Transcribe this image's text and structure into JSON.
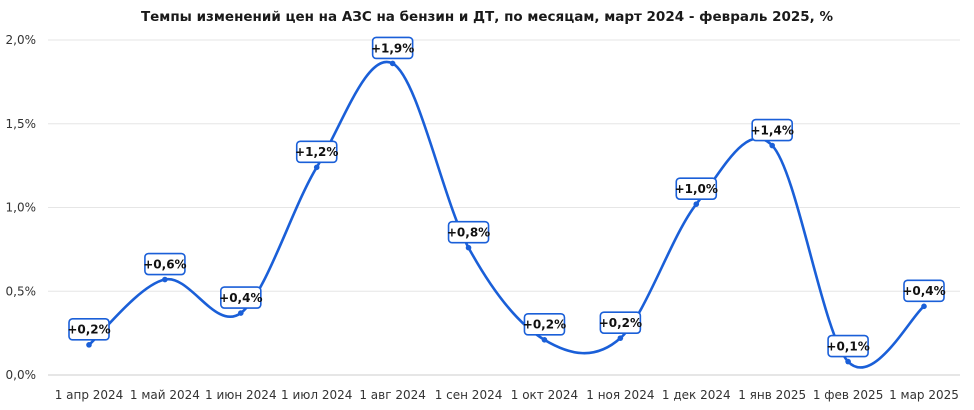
{
  "chart_data": {
    "type": "line",
    "title": "Темпы изменений цен на АЗС на бензин и ДТ, по месяцам, март 2024 - февраль 2025, %",
    "xlabel": "",
    "ylabel": "",
    "categories": [
      "1 апр 2024",
      "1 май 2024",
      "1 июн 2024",
      "1 июл 2024",
      "1 авг 2024",
      "1 сен 2024",
      "1 окт 2024",
      "1 ноя 2024",
      "1 дек 2024",
      "1 янв 2025",
      "1 фев 2025",
      "1 мар 2025"
    ],
    "x": [
      "1 апр 2024",
      "1 май 2024",
      "1 июн 2024",
      "1 июл 2024",
      "1 авг 2024",
      "1 сен 2024",
      "1 окт 2024",
      "1 ноя 2024",
      "1 дек 2024",
      "1 янв 2025",
      "1 фев 2025",
      "1 мар 2025"
    ],
    "series": [
      {
        "values": [
          0.18,
          0.57,
          0.37,
          1.24,
          1.86,
          0.76,
          0.21,
          0.22,
          1.02,
          1.37,
          0.08,
          0.41
        ],
        "data_labels": [
          "+0,2%",
          "+0,6%",
          "+0,4%",
          "+1,2%",
          "+1,9%",
          "+0,8%",
          "+0,2%",
          "+0,2%",
          "+1,0%",
          "+1,4%",
          "+0,1%",
          "+0,4%"
        ],
        "color": "#1a5fd8"
      }
    ],
    "ylim": [
      0,
      2.0
    ],
    "yticks": [
      0,
      0.5,
      1.0,
      1.5,
      2.0
    ],
    "ytick_labels": [
      "0,0%",
      "0,5%",
      "1,0%",
      "1,5%",
      "2,0%"
    ],
    "grid": true,
    "legend": "none"
  }
}
